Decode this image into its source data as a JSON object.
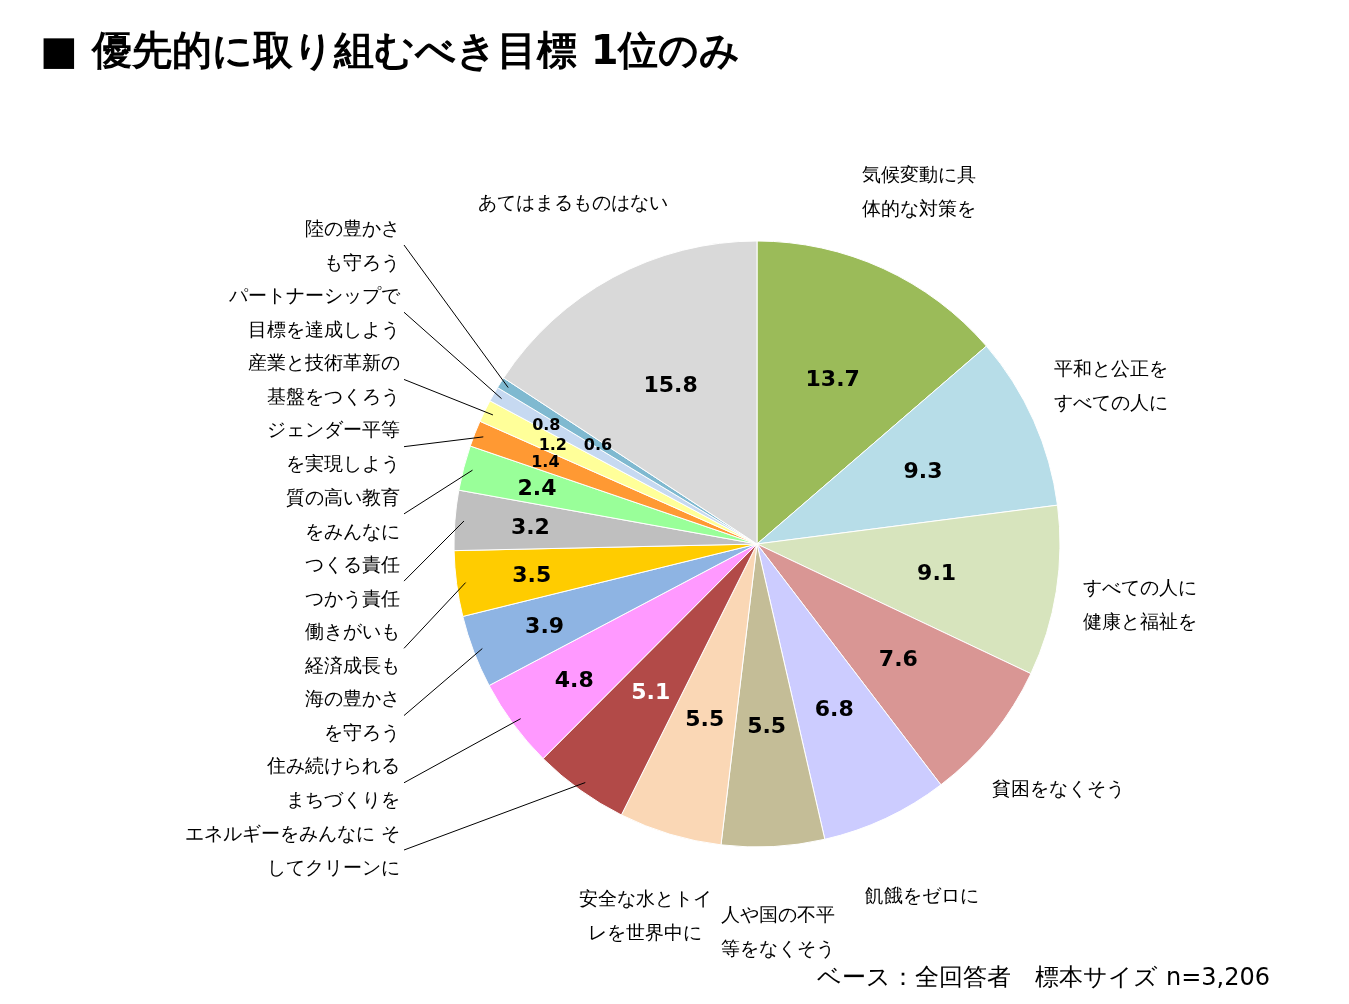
{
  "chart_data": {
    "type": "pie",
    "title": "■ 優先的に取り組むべき目標 1位のみ",
    "categories": [
      "気候変動に具体的な対策を",
      "平和と公正をすべての人に",
      "すべての人に健康と福祉を",
      "貧困をなくそう",
      "飢餓をゼロに",
      "人や国の不平等をなくそう",
      "安全な水とトイレを世界中に",
      "エネルギーをみんなに そしてクリーンに",
      "住み続けられるまちづくりを",
      "海の豊かさを守ろう",
      "働きがいも経済成長も",
      "つくる責任つかう責任",
      "質の高い教育をみんなに",
      "ジェンダー平等を実現しよう",
      "産業と技術革新の基盤をつくろう",
      "パートナーシップで目標を達成しよう",
      "陸の豊かさも守ろう",
      "あてはまるものはない"
    ],
    "values": [
      13.7,
      9.3,
      9.1,
      7.6,
      6.8,
      5.5,
      5.5,
      5.1,
      4.8,
      3.9,
      3.5,
      3.2,
      2.4,
      1.4,
      1.2,
      0.8,
      0.6,
      15.8
    ],
    "colors": [
      "#9bbb59",
      "#b7dde8",
      "#d7e4bd",
      "#d99694",
      "#ccccff",
      "#c4bd97",
      "#fad7b5",
      "#b24a48",
      "#ff99ff",
      "#8eb4e3",
      "#ffcc00",
      "#bfbfbf",
      "#99ff99",
      "#ff9933",
      "#ffff99",
      "#c6d9f1",
      "#7fb9d0",
      "#d9d9d9"
    ],
    "data_labels": true,
    "annotations": [
      "ベース：全回答者　標本サイズ n=3,206"
    ]
  }
}
